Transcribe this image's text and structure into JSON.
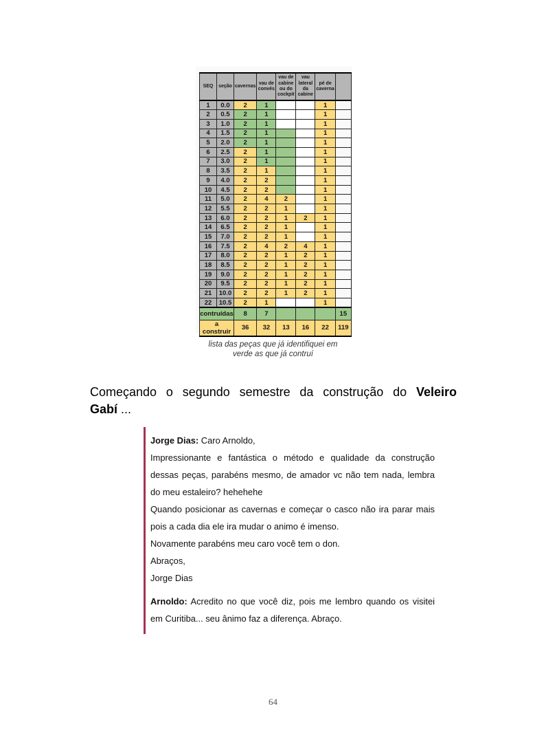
{
  "colors": {
    "green": "#9cc98b",
    "orange": "#fbda80",
    "header_gray": "#b6b6b6",
    "white": "#ffffff",
    "accent_red": "#a23353",
    "figure_bg": "#f9f9f9"
  },
  "table": {
    "headers": [
      "SEQ",
      "seção",
      "cavernas",
      "vau de convés",
      "vau de cabine ou do cockpit",
      "vau lateral da cabine",
      "pé de caverna"
    ],
    "rows": [
      {
        "seq": "1",
        "secao": "0.0",
        "cells": [
          [
            "2",
            "o"
          ],
          [
            "1",
            "g"
          ],
          [
            "",
            "w"
          ],
          [
            "",
            "w"
          ],
          [
            "1",
            "o"
          ]
        ]
      },
      {
        "seq": "2",
        "secao": "0.5",
        "cells": [
          [
            "2",
            "g"
          ],
          [
            "1",
            "g"
          ],
          [
            "",
            "w"
          ],
          [
            "",
            "w"
          ],
          [
            "1",
            "o"
          ]
        ]
      },
      {
        "seq": "3",
        "secao": "1.0",
        "cells": [
          [
            "2",
            "g"
          ],
          [
            "1",
            "g"
          ],
          [
            "",
            "w"
          ],
          [
            "",
            "w"
          ],
          [
            "1",
            "o"
          ]
        ]
      },
      {
        "seq": "4",
        "secao": "1.5",
        "cells": [
          [
            "2",
            "g"
          ],
          [
            "1",
            "g"
          ],
          [
            "",
            "g"
          ],
          [
            "",
            "w"
          ],
          [
            "1",
            "o"
          ]
        ]
      },
      {
        "seq": "5",
        "secao": "2.0",
        "cells": [
          [
            "2",
            "g"
          ],
          [
            "1",
            "g"
          ],
          [
            "",
            "g"
          ],
          [
            "",
            "w"
          ],
          [
            "1",
            "o"
          ]
        ]
      },
      {
        "seq": "6",
        "secao": "2.5",
        "cells": [
          [
            "2",
            "o"
          ],
          [
            "1",
            "g"
          ],
          [
            "",
            "g"
          ],
          [
            "",
            "w"
          ],
          [
            "1",
            "o"
          ]
        ]
      },
      {
        "seq": "7",
        "secao": "3.0",
        "cells": [
          [
            "2",
            "o"
          ],
          [
            "1",
            "g"
          ],
          [
            "",
            "g"
          ],
          [
            "",
            "w"
          ],
          [
            "1",
            "o"
          ]
        ]
      },
      {
        "seq": "8",
        "secao": "3.5",
        "cells": [
          [
            "2",
            "o"
          ],
          [
            "1",
            "o"
          ],
          [
            "",
            "g"
          ],
          [
            "",
            "w"
          ],
          [
            "1",
            "o"
          ]
        ]
      },
      {
        "seq": "9",
        "secao": "4.0",
        "cells": [
          [
            "2",
            "o"
          ],
          [
            "2",
            "o"
          ],
          [
            "",
            "g"
          ],
          [
            "",
            "w"
          ],
          [
            "1",
            "o"
          ]
        ]
      },
      {
        "seq": "10",
        "secao": "4.5",
        "cells": [
          [
            "2",
            "o"
          ],
          [
            "2",
            "o"
          ],
          [
            "",
            "g"
          ],
          [
            "",
            "w"
          ],
          [
            "1",
            "o"
          ]
        ]
      },
      {
        "seq": "11",
        "secao": "5.0",
        "cells": [
          [
            "2",
            "o"
          ],
          [
            "4",
            "o"
          ],
          [
            "2",
            "o"
          ],
          [
            "",
            "w"
          ],
          [
            "1",
            "o"
          ]
        ]
      },
      {
        "seq": "12",
        "secao": "5.5",
        "cells": [
          [
            "2",
            "o"
          ],
          [
            "2",
            "o"
          ],
          [
            "1",
            "o"
          ],
          [
            "",
            "w"
          ],
          [
            "1",
            "o"
          ]
        ]
      },
      {
        "seq": "13",
        "secao": "6.0",
        "cells": [
          [
            "2",
            "o"
          ],
          [
            "2",
            "o"
          ],
          [
            "1",
            "o"
          ],
          [
            "2",
            "o"
          ],
          [
            "1",
            "o"
          ]
        ]
      },
      {
        "seq": "14",
        "secao": "6.5",
        "cells": [
          [
            "2",
            "o"
          ],
          [
            "2",
            "o"
          ],
          [
            "1",
            "o"
          ],
          [
            "",
            "w"
          ],
          [
            "1",
            "o"
          ]
        ]
      },
      {
        "seq": "15",
        "secao": "7.0",
        "cells": [
          [
            "2",
            "o"
          ],
          [
            "2",
            "o"
          ],
          [
            "1",
            "o"
          ],
          [
            "",
            "w"
          ],
          [
            "1",
            "o"
          ]
        ]
      },
      {
        "seq": "16",
        "secao": "7.5",
        "cells": [
          [
            "2",
            "o"
          ],
          [
            "4",
            "o"
          ],
          [
            "2",
            "o"
          ],
          [
            "4",
            "o"
          ],
          [
            "1",
            "o"
          ]
        ]
      },
      {
        "seq": "17",
        "secao": "8.0",
        "cells": [
          [
            "2",
            "o"
          ],
          [
            "2",
            "o"
          ],
          [
            "1",
            "o"
          ],
          [
            "2",
            "o"
          ],
          [
            "1",
            "o"
          ]
        ]
      },
      {
        "seq": "18",
        "secao": "8.5",
        "cells": [
          [
            "2",
            "o"
          ],
          [
            "2",
            "o"
          ],
          [
            "1",
            "o"
          ],
          [
            "2",
            "o"
          ],
          [
            "1",
            "o"
          ]
        ]
      },
      {
        "seq": "19",
        "secao": "9.0",
        "cells": [
          [
            "2",
            "o"
          ],
          [
            "2",
            "o"
          ],
          [
            "1",
            "o"
          ],
          [
            "2",
            "o"
          ],
          [
            "1",
            "o"
          ]
        ]
      },
      {
        "seq": "20",
        "secao": "9.5",
        "cells": [
          [
            "2",
            "o"
          ],
          [
            "2",
            "o"
          ],
          [
            "1",
            "o"
          ],
          [
            "2",
            "o"
          ],
          [
            "1",
            "o"
          ]
        ]
      },
      {
        "seq": "21",
        "secao": "10.0",
        "cells": [
          [
            "2",
            "o"
          ],
          [
            "2",
            "o"
          ],
          [
            "1",
            "o"
          ],
          [
            "2",
            "o"
          ],
          [
            "1",
            "o"
          ]
        ]
      },
      {
        "seq": "22",
        "secao": "10.5",
        "cells": [
          [
            "2",
            "o"
          ],
          [
            "1",
            "o"
          ],
          [
            "",
            "w"
          ],
          [
            "",
            "w"
          ],
          [
            "1",
            "o"
          ]
        ]
      }
    ],
    "summary": [
      {
        "label": "contruídas",
        "style": "g",
        "cells": [
          "8",
          "7",
          "",
          "",
          ""
        ],
        "total": "15"
      },
      {
        "label": "a construir",
        "style": "o",
        "cells": [
          "36",
          "32",
          "13",
          "16",
          "22"
        ],
        "total": "119"
      }
    ]
  },
  "figure": {
    "caption_line1": "lista das peças que já identifiquei em",
    "caption_line2": "verde as que já contruí"
  },
  "heading": {
    "line1_regular": "Começando o segundo semestre da construção do ",
    "line1_bold": "Veleiro",
    "line2_bold": "Gabí",
    "line2_suffix": " ..."
  },
  "comment": {
    "paragraphs": [
      {
        "bold": "Jorge Dias:",
        "text": " Caro Arnoldo,"
      },
      {
        "text": "Impressionante e fantástica o método e qualidade da construção dessas peças, parabéns mesmo, de amador vc não tem nada, lembra do meu estaleiro? hehehehe"
      },
      {
        "text": "Quando posicionar as cavernas e começar o casco não ira parar mais pois a cada dia ele ira mudar o animo é imenso."
      },
      {
        "text": "Novamente parabéns meu caro você tem o don."
      },
      {
        "text": "Abraços,"
      },
      {
        "text": "Jorge Dias"
      },
      {
        "bold": "Arnoldo:",
        "text": " Acredito no que você diz, pois me lembro quando os visitei em Curitiba... seu ânimo faz a diferença. Abraço.",
        "new_block": true
      }
    ]
  },
  "page": {
    "number": "64"
  }
}
